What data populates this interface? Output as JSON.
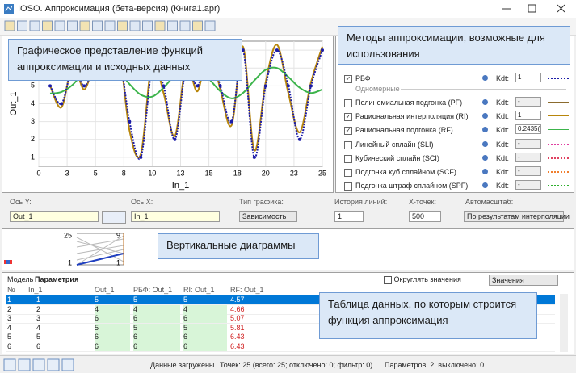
{
  "window": {
    "title": "IOSO. Аппроксимация (бета-версия) (Книга1.apr)"
  },
  "callouts": [
    "Графическое представление функций аппроксимации и исходных данных",
    "Методы аппроксимации, возможные для использования",
    "Вертикальные диаграммы",
    "Таблица данных, по которым строится функция аппроксимация"
  ],
  "chart_data": {
    "type": "line",
    "xlabel": "In_1",
    "ylabel": "Out_1",
    "x": [
      1,
      2,
      3,
      4,
      5,
      6,
      7,
      8,
      9,
      10,
      11,
      12,
      13,
      14,
      15,
      16,
      17,
      18,
      19,
      20,
      21,
      22,
      23,
      24,
      25
    ],
    "xlim": [
      0,
      25
    ],
    "ylim": [
      0.5,
      7.5
    ],
    "xticks": [
      0,
      {
        "value": 2.5,
        "label": "3"
      },
      5,
      {
        "value": 7.5,
        "label": "8"
      },
      10,
      {
        "value": 12.5,
        "label": "13"
      },
      15,
      {
        "value": 17.5,
        "label": "18"
      },
      20,
      {
        "value": 22.5,
        "label": "23"
      },
      25
    ],
    "yticks": [
      1,
      2,
      3,
      4,
      5,
      6,
      7
    ],
    "grid": true,
    "series": [
      {
        "name": "RI",
        "color": "#b8860b",
        "values": [
          5,
          3.8,
          6.2,
          4.8,
          6.3,
          5.8,
          7.2,
          2.5,
          1.2,
          6.4,
          4.6,
          2.2,
          6.2,
          4.7,
          7.3,
          4.8,
          2.8,
          7.2,
          1.4,
          5.2,
          7.3,
          4.6,
          2.4,
          5.2,
          7.2
        ]
      },
      {
        "name": "RF",
        "color": "#3cb44b",
        "values": [
          4.57,
          4.66,
          5.07,
          5.81,
          6.43,
          6.43,
          5.9,
          5.1,
          4.5,
          4.4,
          4.9,
          5.6,
          6.1,
          6.0,
          5.4,
          4.7,
          4.3,
          4.6,
          5.3,
          5.9,
          6.0,
          5.5,
          4.9,
          4.6,
          4.8
        ]
      },
      {
        "name": "РБФ",
        "color": "#1c1ca8",
        "dashed": true,
        "values": [
          5,
          4,
          6,
          5,
          6,
          6,
          7,
          3,
          1,
          6,
          5,
          2,
          6,
          5,
          7,
          5,
          3,
          7,
          1,
          5,
          7,
          5,
          2,
          5,
          7
        ]
      }
    ]
  },
  "methods": {
    "top": {
      "label": "РБФ",
      "kdt_label": "Kdt:",
      "kdt": "1",
      "color": "#1c1ca8",
      "dashed": true,
      "checked": true
    },
    "group": "Одномерные",
    "items": [
      {
        "label": "Полиномиальная подгонка (PF)",
        "kdt": "-",
        "color": "#8b6b2e",
        "dashed": false,
        "checked": false
      },
      {
        "label": "Рациональная интерполяция (RI)",
        "kdt": "1",
        "color": "#b8860b",
        "dashed": false,
        "checked": true
      },
      {
        "label": "Рациональная подгонка (RF)",
        "kdt": "0.2435(",
        "color": "#3cb44b",
        "dashed": false,
        "checked": true
      },
      {
        "label": "Линейный сплайн (SLI)",
        "kdt": "-",
        "color": "#e040a0",
        "dashed": true,
        "checked": false
      },
      {
        "label": "Кубический сплайн (SCI)",
        "kdt": "-",
        "color": "#e04060",
        "dashed": true,
        "checked": false
      },
      {
        "label": "Подгонка куб сплайном (SCF)",
        "kdt": "-",
        "color": "#f08030",
        "dashed": true,
        "checked": false
      },
      {
        "label": "Подгонка штраф сплайном (SPF)",
        "kdt": "-",
        "color": "#30b030",
        "dashed": true,
        "checked": false
      }
    ]
  },
  "controls": {
    "axis_y_label": "Ось Y:",
    "axis_y": "Out_1",
    "axis_x_label": "Ось X:",
    "axis_x": "In_1",
    "chart_type_label": "Тип графика:",
    "chart_type": "Зависимость",
    "history_label": "История линий:",
    "history": "1",
    "xpoints_label": "X-точек:",
    "xpoints": "500",
    "autoscale_label": "Автомасштаб:",
    "autoscale": "По результатам интерполяции"
  },
  "vertical": {
    "left_top": "25",
    "left_bottom": "1",
    "right_top": "9",
    "right_bottom": "1"
  },
  "table": {
    "tabs": [
      "Модель",
      "Параметрия"
    ],
    "round_label": "Округлять значения",
    "mode": "Значения",
    "columns": [
      "№",
      "In_1",
      "Out_1",
      "РБФ: Out_1",
      "RI: Out_1",
      "RF: Out_1"
    ],
    "rows": [
      [
        "1",
        "1",
        "5",
        "5",
        "5",
        "4.57"
      ],
      [
        "2",
        "2",
        "4",
        "4",
        "4",
        "4.66"
      ],
      [
        "3",
        "3",
        "6",
        "6",
        "6",
        "5.07"
      ],
      [
        "4",
        "4",
        "5",
        "5",
        "5",
        "5.81"
      ],
      [
        "5",
        "5",
        "6",
        "6",
        "6",
        "6.43"
      ],
      [
        "6",
        "6",
        "6",
        "6",
        "6",
        "6.43"
      ]
    ]
  },
  "status": {
    "state": "Данные загружены.",
    "points": "Точек: 25 (всего: 25; отключено: 0; фильтр: 0).",
    "params": "Параметров: 2; выключено: 0."
  }
}
